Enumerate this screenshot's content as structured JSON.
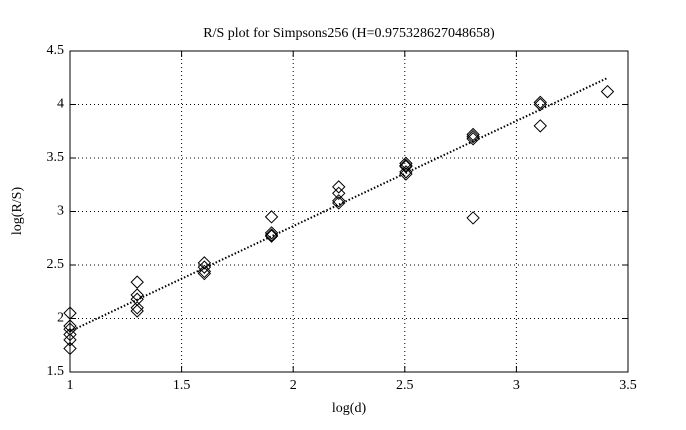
{
  "chart_data": {
    "type": "scatter",
    "title": "R/S plot for Simpsons256 (H=0.975328627048658)",
    "xlabel": "log(d)",
    "ylabel": "log(R/S)",
    "x": [
      1.0,
      1.0,
      1.0,
      1.0,
      1.0,
      1.0,
      1.301,
      1.301,
      1.301,
      1.301,
      1.301,
      1.602,
      1.602,
      1.602,
      1.602,
      1.903,
      1.903,
      1.903,
      1.903,
      2.204,
      2.204,
      2.204,
      2.204,
      2.505,
      2.505,
      2.505,
      2.505,
      2.505,
      2.806,
      2.806,
      2.806,
      2.806,
      3.107,
      3.107,
      3.107,
      3.408
    ],
    "values": [
      2.05,
      1.93,
      1.9,
      1.85,
      1.8,
      1.72,
      2.34,
      2.22,
      2.18,
      2.1,
      2.07,
      2.52,
      2.48,
      2.44,
      2.42,
      2.95,
      2.8,
      2.78,
      2.77,
      3.23,
      3.17,
      3.1,
      3.08,
      3.45,
      3.43,
      3.42,
      3.37,
      3.35,
      3.72,
      3.7,
      3.68,
      2.94,
      4.02,
      4.0,
      3.8,
      4.12
    ],
    "fit": {
      "x": [
        1.0,
        3.41
      ],
      "values": [
        1.88,
        4.25
      ]
    },
    "xlim": [
      1,
      3.5
    ],
    "ylim": [
      1.5,
      4.5
    ],
    "xticks": [
      1,
      1.5,
      2,
      2.5,
      3,
      3.5
    ],
    "yticks": [
      1.5,
      2,
      2.5,
      3,
      3.5,
      4,
      4.5
    ],
    "grid": true,
    "color": "#000000"
  }
}
